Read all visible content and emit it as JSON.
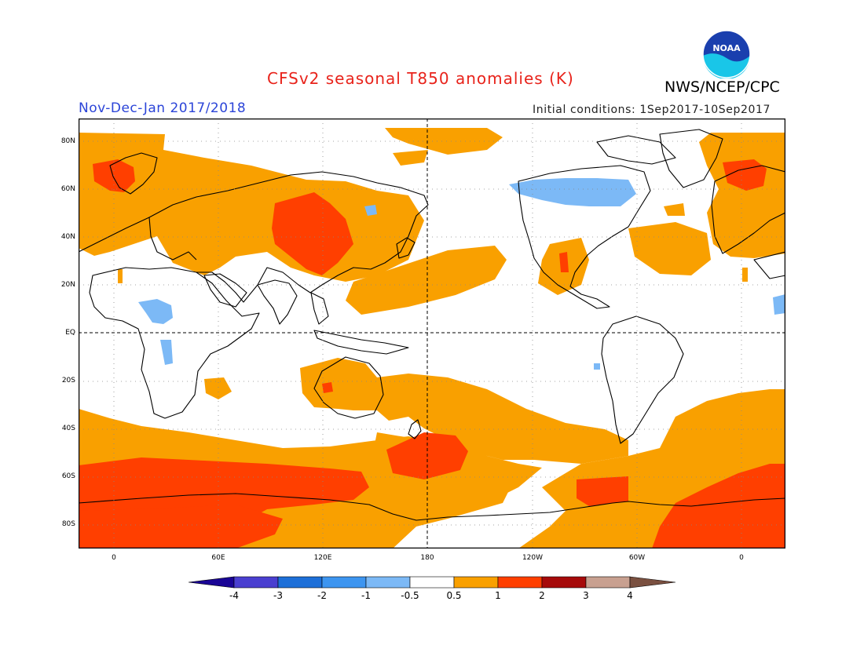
{
  "header": {
    "title": "CFSv2 seasonal T850 anomalies (K)",
    "agency": "NWS/NCEP/CPC",
    "season": "Nov-Dec-Jan 2017/2018",
    "initial_conditions": "Initial conditions: 1Sep2017-10Sep2017",
    "logo_text": "NOAA"
  },
  "map": {
    "lat_labels": [
      "80N",
      "60N",
      "40N",
      "20N",
      "EQ",
      "20S",
      "40S",
      "60S",
      "80S"
    ],
    "lon_labels": [
      "0",
      "60E",
      "120E",
      "180",
      "120W",
      "60W",
      "0"
    ],
    "colors": {
      "anom_0_5_to_1": "#f9a000",
      "anom_1_to_2": "#ff3f00",
      "anom_neg_1_to_neg_0_5": "#7cb9f6",
      "land_outline": "#000000"
    }
  },
  "colorbar": {
    "labels": [
      "-4",
      "-3",
      "-2",
      "-1",
      "-0.5",
      "0.5",
      "1",
      "2",
      "3",
      "4"
    ],
    "colors": [
      "#1a0596",
      "#4a3fd0",
      "#1d6fd8",
      "#3d95f0",
      "#7cb9f6",
      "#ffffff",
      "#f9a000",
      "#ff3f00",
      "#a60a0a",
      "#c8a090",
      "#7a5040"
    ]
  }
}
